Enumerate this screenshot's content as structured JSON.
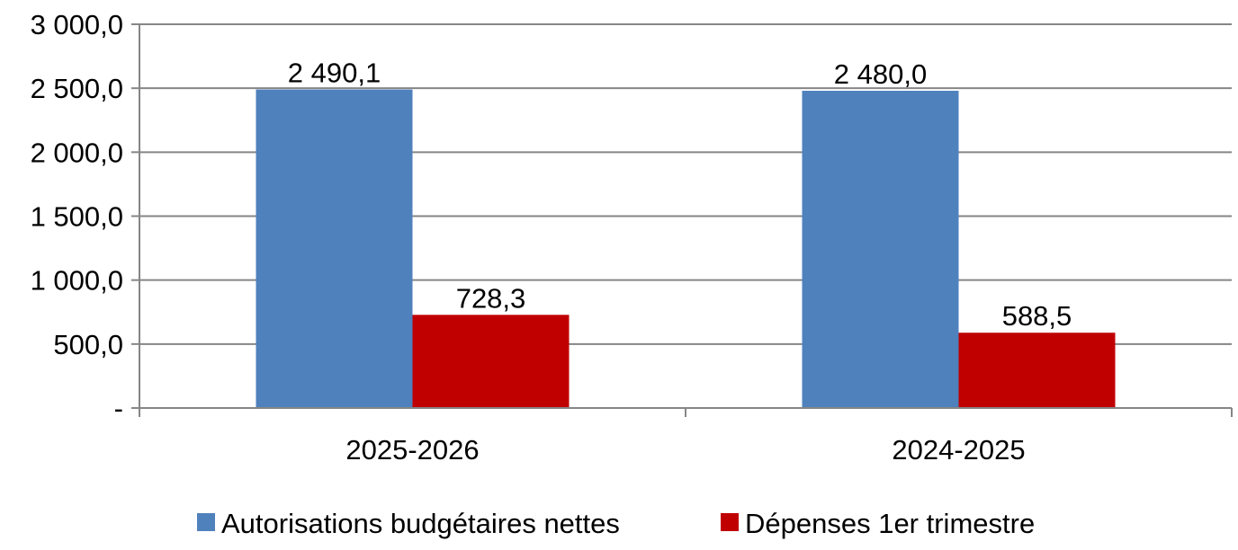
{
  "chart_data": {
    "type": "bar",
    "categories": [
      "2025-2026",
      "2024-2025"
    ],
    "series": [
      {
        "name": "Autorisations budgétaires nettes",
        "color": "#4F81BD",
        "values": [
          2490.1,
          2480.0
        ],
        "labels": [
          "2 490,1",
          "2 480,0"
        ]
      },
      {
        "name": "Dépenses 1er trimestre",
        "color": "#C00000",
        "values": [
          728.3,
          588.5
        ],
        "labels": [
          "728,3",
          "588,5"
        ]
      }
    ],
    "yticks": [
      0,
      500,
      1000,
      1500,
      2000,
      2500,
      3000
    ],
    "ytick_labels": [
      "-",
      "500,0",
      "1 000,0",
      "1 500,0",
      "2 000,0",
      "2 500,0",
      "3 000,0"
    ],
    "ylim": [
      0,
      3000
    ],
    "grid": true,
    "legend_position": "bottom",
    "gridline_color": "#868686",
    "axis_color": "#868686"
  }
}
